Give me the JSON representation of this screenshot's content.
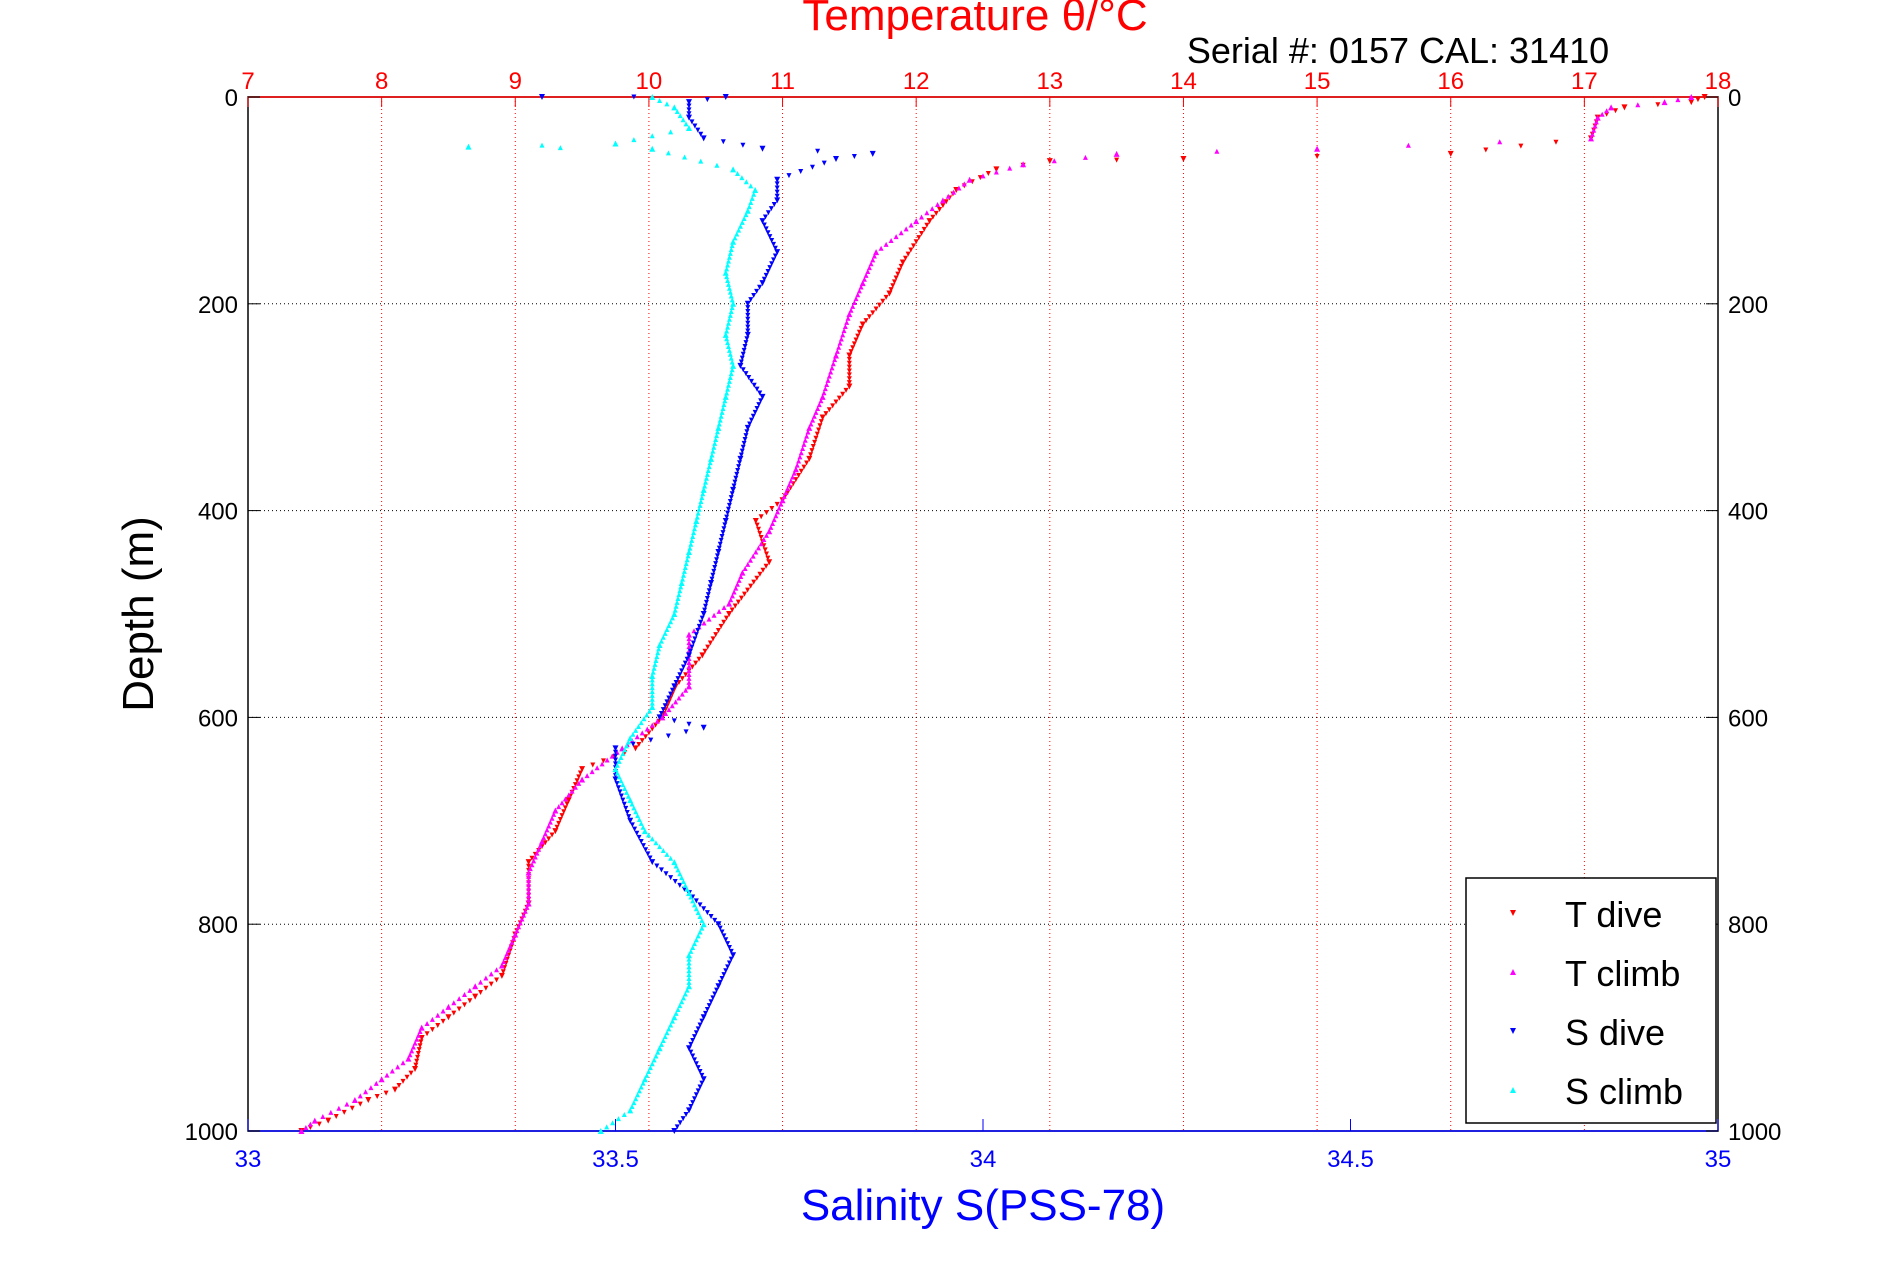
{
  "chart_data": {
    "type": "scatter",
    "title": "Temperature θ/°C",
    "serial_label": "Serial #: 0157  CAL: 31410",
    "ylabel": "Depth (m)",
    "xlabel": "Salinity S(PSS-78)",
    "ylim": [
      0,
      1000
    ],
    "y_reversed": true,
    "y_ticks": [
      0,
      200,
      400,
      600,
      800,
      1000
    ],
    "temp_axis": {
      "range": [
        7,
        18
      ],
      "ticks": [
        7,
        8,
        9,
        10,
        11,
        12,
        13,
        14,
        15,
        16,
        17,
        18
      ],
      "position": "top",
      "color": "#ff0000",
      "grid": true
    },
    "sal_axis": {
      "range": [
        33,
        35
      ],
      "ticks": [
        33,
        33.5,
        34,
        34.5,
        35
      ],
      "position": "bottom",
      "color": "#0000ff",
      "grid": false
    },
    "legend": {
      "position": "bottom-right"
    },
    "series": [
      {
        "name": "T dive",
        "axis": "temp",
        "color": "#ff0000",
        "marker": "triangle-down",
        "points": [
          [
            17.9,
            0
          ],
          [
            17.8,
            5
          ],
          [
            17.3,
            10
          ],
          [
            17.1,
            20
          ],
          [
            17.05,
            40
          ],
          [
            16.0,
            55
          ],
          [
            14.0,
            60
          ],
          [
            13.0,
            62
          ],
          [
            12.6,
            70
          ],
          [
            12.3,
            90
          ],
          [
            12.1,
            120
          ],
          [
            11.9,
            160
          ],
          [
            11.8,
            190
          ],
          [
            11.6,
            220
          ],
          [
            11.5,
            250
          ],
          [
            11.5,
            280
          ],
          [
            11.3,
            310
          ],
          [
            11.2,
            350
          ],
          [
            11.0,
            390
          ],
          [
            10.8,
            410
          ],
          [
            10.9,
            450
          ],
          [
            10.6,
            500
          ],
          [
            10.4,
            540
          ],
          [
            10.2,
            570
          ],
          [
            10.1,
            600
          ],
          [
            9.9,
            630
          ],
          [
            9.5,
            650
          ],
          [
            9.4,
            680
          ],
          [
            9.3,
            710
          ],
          [
            9.1,
            740
          ],
          [
            9.1,
            780
          ],
          [
            9.0,
            810
          ],
          [
            8.9,
            850
          ],
          [
            8.7,
            870
          ],
          [
            8.5,
            890
          ],
          [
            8.3,
            910
          ],
          [
            8.25,
            940
          ],
          [
            8.1,
            960
          ],
          [
            7.9,
            970
          ],
          [
            7.6,
            990
          ],
          [
            7.4,
            1000
          ]
        ]
      },
      {
        "name": "T climb",
        "axis": "temp",
        "color": "#ff00ff",
        "marker": "triangle-up",
        "points": [
          [
            17.8,
            0
          ],
          [
            17.6,
            5
          ],
          [
            17.2,
            10
          ],
          [
            17.1,
            20
          ],
          [
            17.05,
            40
          ],
          [
            15.0,
            50
          ],
          [
            13.5,
            55
          ],
          [
            12.8,
            65
          ],
          [
            12.4,
            80
          ],
          [
            12.2,
            100
          ],
          [
            12.0,
            120
          ],
          [
            11.7,
            150
          ],
          [
            11.6,
            180
          ],
          [
            11.5,
            210
          ],
          [
            11.4,
            250
          ],
          [
            11.3,
            290
          ],
          [
            11.2,
            320
          ],
          [
            11.1,
            360
          ],
          [
            11.0,
            390
          ],
          [
            10.9,
            420
          ],
          [
            10.7,
            460
          ],
          [
            10.6,
            490
          ],
          [
            10.3,
            520
          ],
          [
            10.3,
            570
          ],
          [
            10.1,
            600
          ],
          [
            9.8,
            630
          ],
          [
            9.5,
            660
          ],
          [
            9.3,
            690
          ],
          [
            9.2,
            720
          ],
          [
            9.1,
            750
          ],
          [
            9.1,
            780
          ],
          [
            9.0,
            810
          ],
          [
            8.9,
            840
          ],
          [
            8.7,
            860
          ],
          [
            8.5,
            880
          ],
          [
            8.3,
            900
          ],
          [
            8.2,
            930
          ],
          [
            8.0,
            950
          ],
          [
            7.8,
            970
          ],
          [
            7.5,
            990
          ],
          [
            7.4,
            1000
          ]
        ]
      },
      {
        "name": "S dive",
        "axis": "sal",
        "color": "#0000ff",
        "marker": "triangle-down",
        "points": [
          [
            33.4,
            0
          ],
          [
            33.65,
            0
          ],
          [
            33.6,
            5
          ],
          [
            33.6,
            20
          ],
          [
            33.62,
            40
          ],
          [
            33.7,
            50
          ],
          [
            33.85,
            55
          ],
          [
            33.8,
            60
          ],
          [
            33.72,
            80
          ],
          [
            33.72,
            100
          ],
          [
            33.7,
            120
          ],
          [
            33.72,
            150
          ],
          [
            33.7,
            180
          ],
          [
            33.68,
            200
          ],
          [
            33.68,
            230
          ],
          [
            33.67,
            260
          ],
          [
            33.7,
            290
          ],
          [
            33.68,
            320
          ],
          [
            33.67,
            350
          ],
          [
            33.66,
            380
          ],
          [
            33.65,
            410
          ],
          [
            33.64,
            440
          ],
          [
            33.63,
            470
          ],
          [
            33.62,
            500
          ],
          [
            33.6,
            540
          ],
          [
            33.58,
            570
          ],
          [
            33.56,
            600
          ],
          [
            33.62,
            610
          ],
          [
            33.5,
            630
          ],
          [
            33.5,
            660
          ],
          [
            33.52,
            700
          ],
          [
            33.55,
            740
          ],
          [
            33.6,
            770
          ],
          [
            33.64,
            800
          ],
          [
            33.66,
            830
          ],
          [
            33.64,
            860
          ],
          [
            33.62,
            890
          ],
          [
            33.6,
            920
          ],
          [
            33.62,
            950
          ],
          [
            33.6,
            980
          ],
          [
            33.58,
            1000
          ]
        ]
      },
      {
        "name": "S climb",
        "axis": "sal",
        "color": "#00ffff",
        "marker": "triangle-up",
        "points": [
          [
            33.55,
            0
          ],
          [
            33.58,
            10
          ],
          [
            33.6,
            30
          ],
          [
            33.5,
            45
          ],
          [
            33.3,
            48
          ],
          [
            33.55,
            50
          ],
          [
            33.66,
            70
          ],
          [
            33.69,
            90
          ],
          [
            33.68,
            110
          ],
          [
            33.66,
            140
          ],
          [
            33.65,
            170
          ],
          [
            33.66,
            200
          ],
          [
            33.65,
            230
          ],
          [
            33.66,
            260
          ],
          [
            33.65,
            290
          ],
          [
            33.64,
            320
          ],
          [
            33.63,
            350
          ],
          [
            33.62,
            380
          ],
          [
            33.61,
            410
          ],
          [
            33.6,
            440
          ],
          [
            33.59,
            470
          ],
          [
            33.58,
            500
          ],
          [
            33.56,
            530
          ],
          [
            33.55,
            560
          ],
          [
            33.55,
            590
          ],
          [
            33.52,
            620
          ],
          [
            33.5,
            650
          ],
          [
            33.52,
            680
          ],
          [
            33.54,
            710
          ],
          [
            33.58,
            740
          ],
          [
            33.6,
            770
          ],
          [
            33.62,
            800
          ],
          [
            33.6,
            830
          ],
          [
            33.6,
            860
          ],
          [
            33.58,
            890
          ],
          [
            33.56,
            920
          ],
          [
            33.54,
            950
          ],
          [
            33.52,
            980
          ],
          [
            33.48,
            1000
          ]
        ]
      }
    ]
  }
}
